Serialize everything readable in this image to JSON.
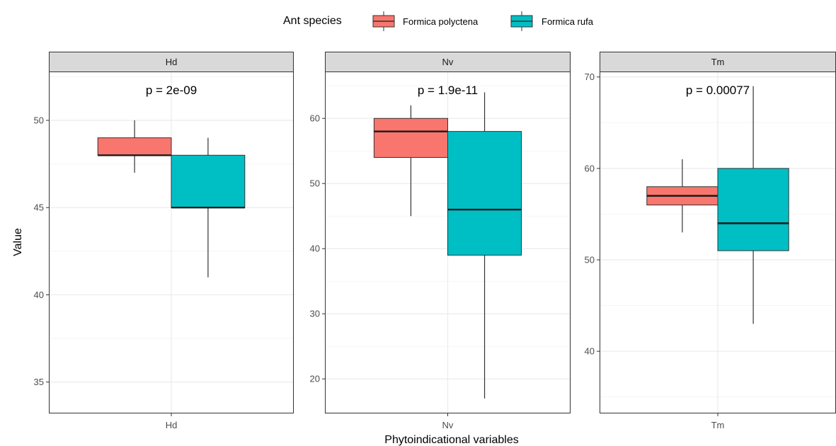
{
  "chart_data": {
    "type": "boxplot",
    "xlabel": "Phytoindicational variables",
    "ylabel": "Value",
    "legend": {
      "title": "Ant species",
      "position": "top",
      "entries": [
        {
          "name": "Formica polyctena",
          "color": "#F8766D"
        },
        {
          "name": "Formica rufa",
          "color": "#00BFC4"
        }
      ]
    },
    "grid": true,
    "facets": [
      {
        "label": "Hd",
        "xtick": "Hd",
        "pvalue": "p = 2e-09",
        "ylim": [
          33.2,
          52.8
        ],
        "yticks": [
          35,
          40,
          45,
          50
        ],
        "boxes": [
          {
            "series": "Formica polyctena",
            "min": 47,
            "q1": 48,
            "median": 48,
            "q3": 49,
            "max": 50
          },
          {
            "series": "Formica rufa",
            "min": 41,
            "q1": 45,
            "median": 45,
            "q3": 48,
            "max": 49
          }
        ]
      },
      {
        "label": "Nv",
        "xtick": "Nv",
        "pvalue": "p = 1.9e-11",
        "ylim": [
          14.7,
          67.2
        ],
        "yticks": [
          20,
          30,
          40,
          50,
          60
        ],
        "boxes": [
          {
            "series": "Formica polyctena",
            "min": 45,
            "q1": 54,
            "median": 58,
            "q3": 60,
            "max": 62
          },
          {
            "series": "Formica rufa",
            "min": 17,
            "q1": 39,
            "median": 46,
            "q3": 58,
            "max": 64
          }
        ]
      },
      {
        "label": "Tm",
        "xtick": "Tm",
        "pvalue": "p = 0.00077",
        "ylim": [
          33.2,
          70.6
        ],
        "yticks": [
          40,
          50,
          60,
          70
        ],
        "boxes": [
          {
            "series": "Formica polyctena",
            "min": 53,
            "q1": 56,
            "median": 57,
            "q3": 58,
            "max": 61
          },
          {
            "series": "Formica rufa",
            "min": 43,
            "q1": 51,
            "median": 54,
            "q3": 60,
            "max": 69
          }
        ]
      }
    ]
  }
}
